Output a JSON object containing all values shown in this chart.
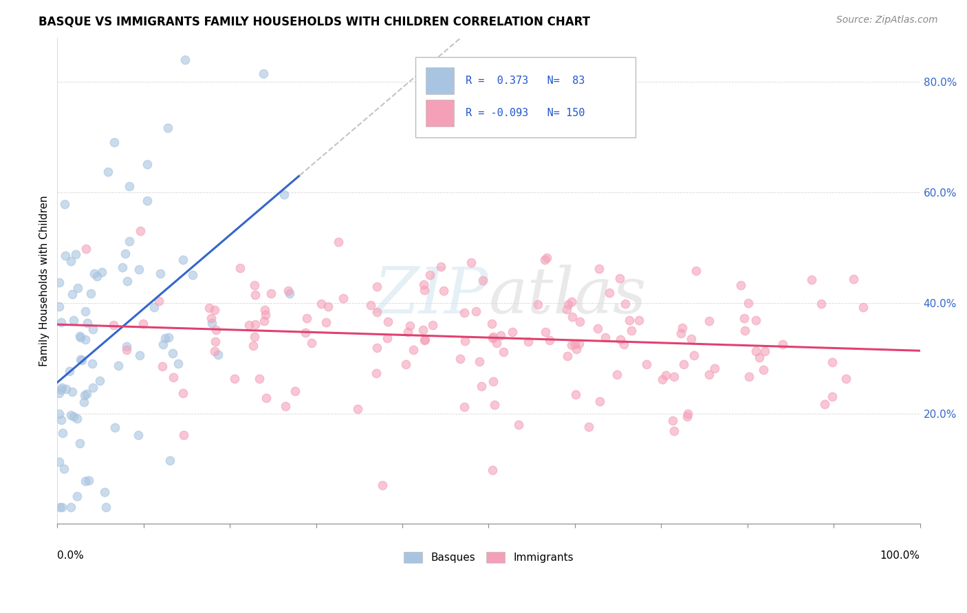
{
  "title": "BASQUE VS IMMIGRANTS FAMILY HOUSEHOLDS WITH CHILDREN CORRELATION CHART",
  "source": "Source: ZipAtlas.com",
  "ylabel": "Family Households with Children",
  "xlim": [
    0.0,
    1.0
  ],
  "ylim": [
    0.0,
    0.88
  ],
  "basque_R": 0.373,
  "basque_N": 83,
  "immigrant_R": -0.093,
  "immigrant_N": 150,
  "basque_color": "#a8c4e0",
  "basque_line_color": "#3366cc",
  "immigrant_color": "#f4a0b8",
  "immigrant_line_color": "#e04070",
  "watermark": "ZIPatlas",
  "background_color": "#ffffff",
  "seed": 12345
}
